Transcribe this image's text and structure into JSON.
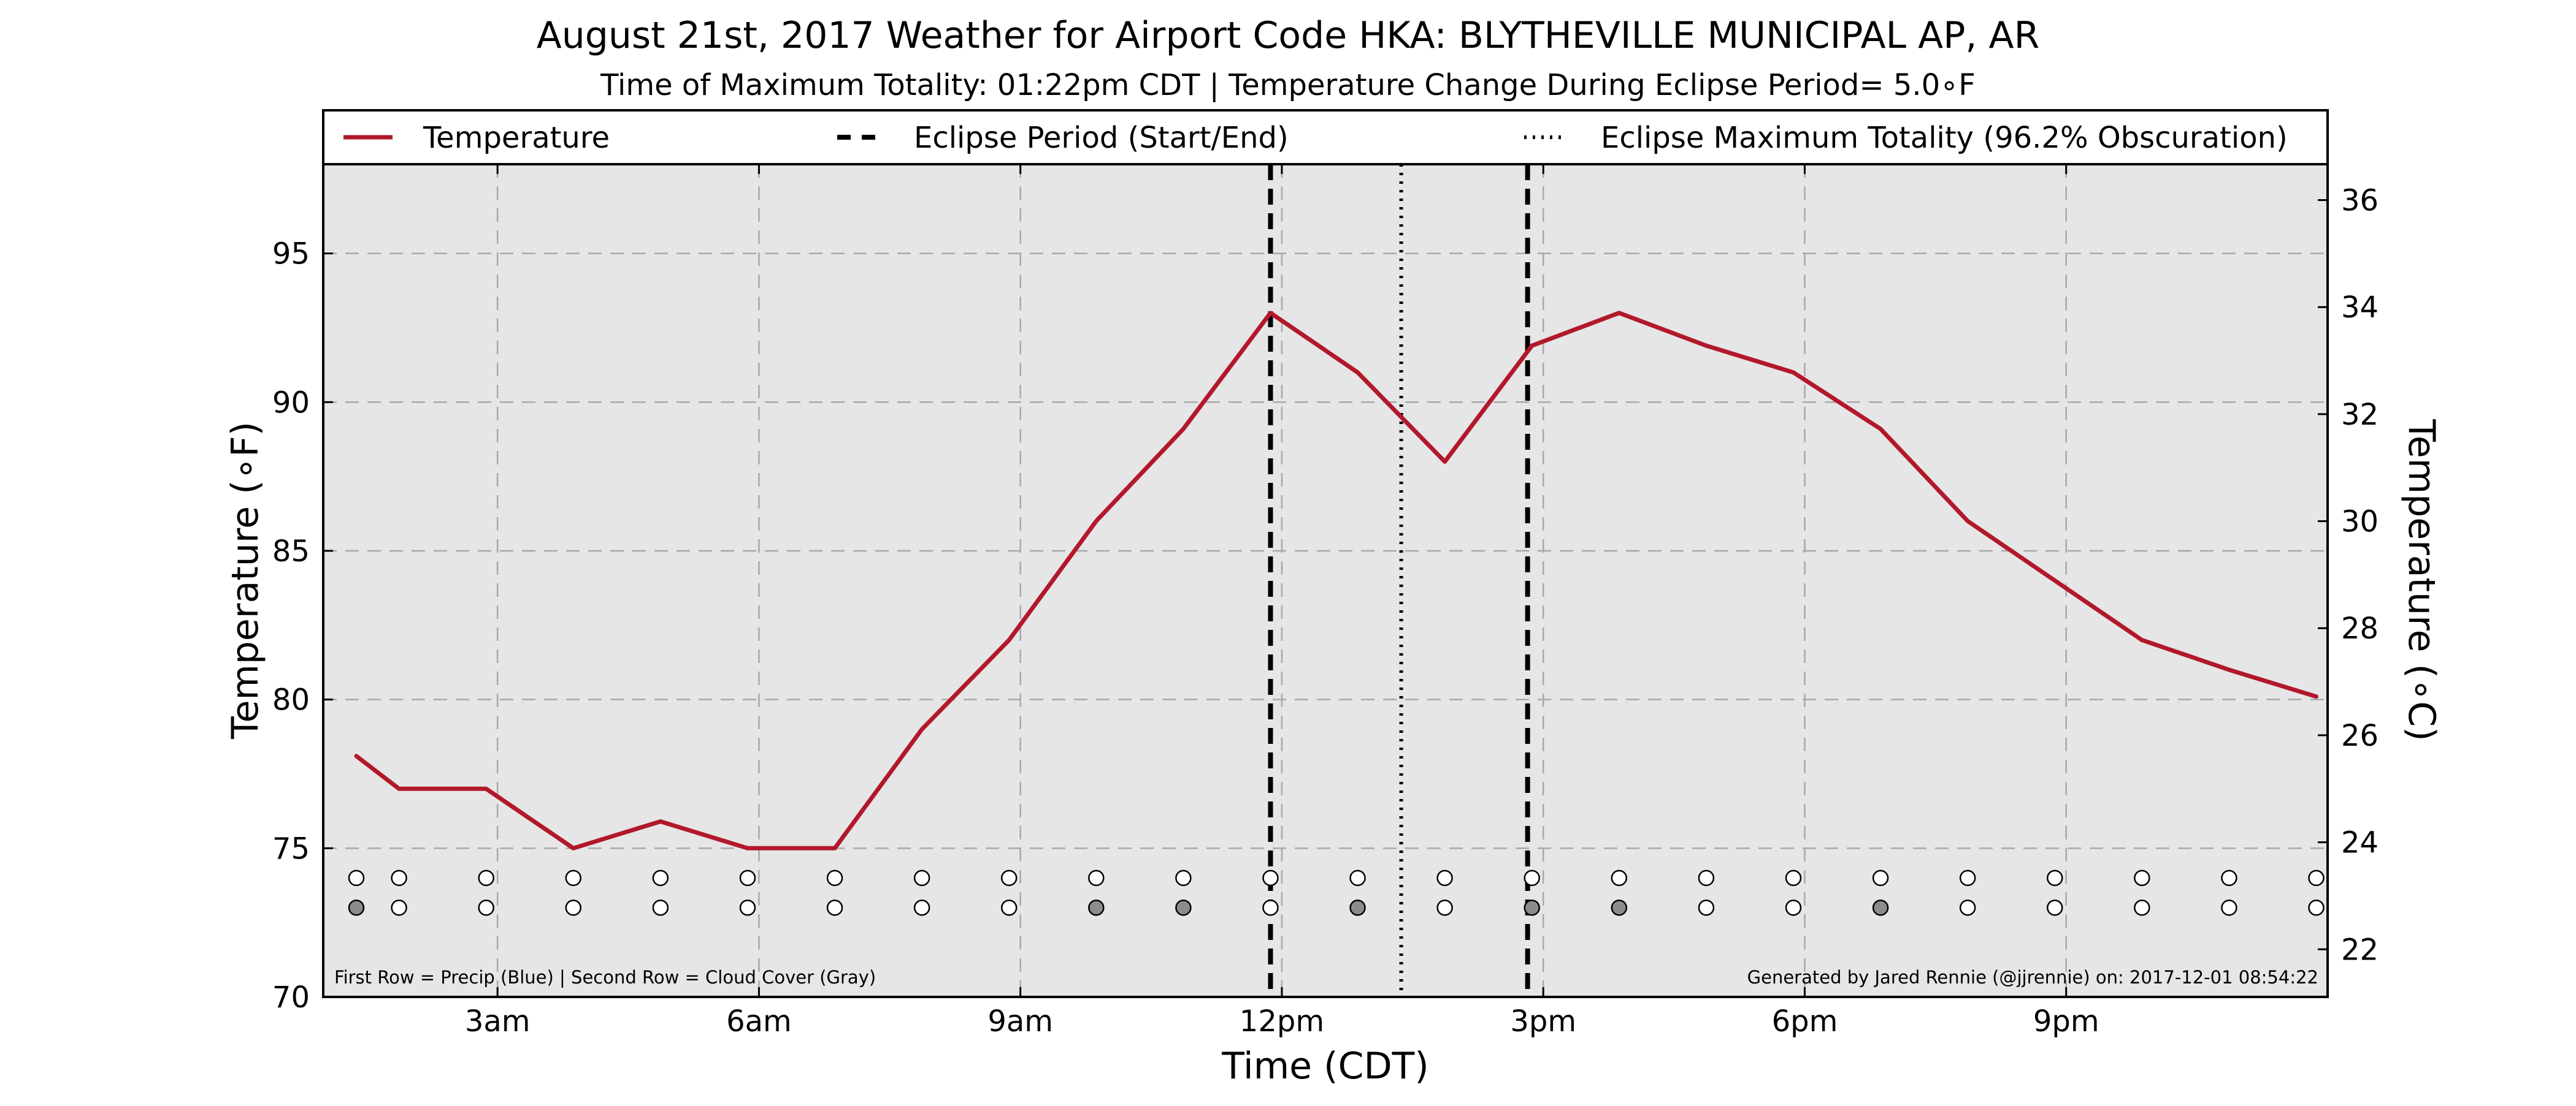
{
  "chart_data": {
    "type": "line",
    "title": "August 21st, 2017 Weather for Airport Code HKA: BLYTHEVILLE MUNICIPAL AP, AR",
    "subtitle": "Time of Maximum Totality: 01:22pm CDT | Temperature Change During Eclipse Period= 5.0∘F",
    "xlabel": "Time (CDT)",
    "ylabel": "Temperature (∘F)",
    "ylabel_right": "Temperature (∘C)",
    "xlim": [
      1.0,
      24.0
    ],
    "ylim": [
      70,
      98
    ],
    "ylim_right": [
      21.11,
      36.67
    ],
    "x_ticks": [
      3,
      6,
      9,
      12,
      15,
      18,
      21
    ],
    "x_tick_labels": [
      "3am",
      "6am",
      "9am",
      "12pm",
      "3pm",
      "6pm",
      "9pm"
    ],
    "y_ticks": [
      70,
      75,
      80,
      85,
      90,
      95
    ],
    "y_tick_labels": [
      "70",
      "75",
      "80",
      "85",
      "90",
      "95"
    ],
    "y_ticks_right": [
      22,
      24,
      26,
      28,
      30,
      32,
      34,
      36
    ],
    "y_tick_labels_right": [
      "22",
      "24",
      "26",
      "28",
      "30",
      "32",
      "34",
      "36"
    ],
    "grid": true,
    "legend_position": "top",
    "legend": [
      {
        "label": "Temperature",
        "style": "solid",
        "color": "#b2182b"
      },
      {
        "label": "Eclipse Period (Start/End)",
        "style": "dashed",
        "color": "#000000"
      },
      {
        "label": "Eclipse Maximum Totality (96.2% Obscuration)",
        "style": "dotted",
        "color": "#000000"
      }
    ],
    "series": [
      {
        "name": "Temperature",
        "color": "#b2182b",
        "x": [
          1.38,
          1.87,
          2.87,
          3.87,
          4.87,
          5.87,
          6.87,
          7.87,
          8.87,
          9.87,
          10.87,
          11.87,
          12.87,
          13.87,
          14.87,
          15.87,
          16.87,
          17.87,
          18.87,
          19.87,
          20.87,
          21.87,
          22.87,
          23.87
        ],
        "y": [
          78.1,
          77.0,
          77.0,
          75.0,
          75.9,
          75.0,
          75.0,
          79.0,
          82.0,
          86.0,
          89.1,
          93.0,
          91.0,
          88.0,
          91.9,
          93.0,
          91.9,
          91.0,
          89.1,
          86.0,
          84.0,
          82.0,
          81.0,
          80.1
        ]
      }
    ],
    "eclipse_start_x": 11.87,
    "eclipse_end_x": 14.82,
    "eclipse_max_x": 13.37,
    "markers": {
      "precip_row_y": 74.0,
      "cloud_row_y": 73.0,
      "x": [
        1.38,
        1.87,
        2.87,
        3.87,
        4.87,
        5.87,
        6.87,
        7.87,
        8.87,
        9.87,
        10.87,
        11.87,
        12.87,
        13.87,
        14.87,
        15.87,
        16.87,
        17.87,
        18.87,
        19.87,
        20.87,
        21.87,
        22.87,
        23.87
      ],
      "precip_fill": [
        "#ffffff",
        "#ffffff",
        "#ffffff",
        "#ffffff",
        "#ffffff",
        "#ffffff",
        "#ffffff",
        "#ffffff",
        "#ffffff",
        "#ffffff",
        "#ffffff",
        "#ffffff",
        "#ffffff",
        "#ffffff",
        "#ffffff",
        "#ffffff",
        "#ffffff",
        "#ffffff",
        "#ffffff",
        "#ffffff",
        "#ffffff",
        "#ffffff",
        "#ffffff",
        "#ffffff"
      ],
      "cloud_fill": [
        "#8c8c8c",
        "#ffffff",
        "#ffffff",
        "#ffffff",
        "#ffffff",
        "#ffffff",
        "#ffffff",
        "#ffffff",
        "#ffffff",
        "#8c8c8c",
        "#8c8c8c",
        "#ffffff",
        "#8c8c8c",
        "#ffffff",
        "#8c8c8c",
        "#8c8c8c",
        "#ffffff",
        "#ffffff",
        "#8c8c8c",
        "#ffffff",
        "#ffffff",
        "#ffffff",
        "#ffffff",
        "#ffffff"
      ]
    },
    "footnote_left": "First Row = Precip (Blue) | Second Row = Cloud Cover (Gray)",
    "footnote_right": "Generated by Jared Rennie (@jjrennie) on: 2017-12-01 08:54:22",
    "colors": {
      "plot_background": "#e6e6e6",
      "grid": "#a8a8a8",
      "temperature_line": "#b2182b",
      "eclipse_lines": "#000000"
    }
  }
}
